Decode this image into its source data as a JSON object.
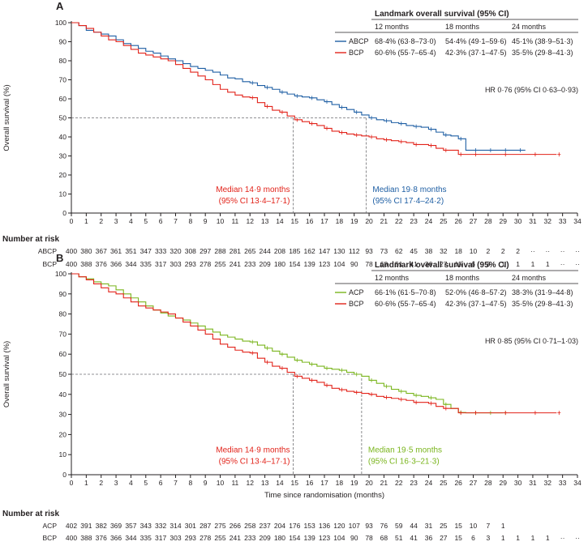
{
  "colors": {
    "abcp": "#1f5fa4",
    "bcp": "#e2231a",
    "acp": "#7ab51d",
    "text": "#231f20",
    "axis": "#231f20",
    "dash": "#6d6e71"
  },
  "chart_data": [
    {
      "panel_label": "A",
      "type": "line",
      "ylabel": "Overall survival (%)",
      "xlabel": "",
      "xlim": [
        0,
        34
      ],
      "ylim": [
        0,
        100
      ],
      "x_ticks": [
        "0",
        "1",
        "2",
        "3",
        "4",
        "5",
        "6",
        "7",
        "8",
        "9",
        "10",
        "11",
        "12",
        "13",
        "14",
        "15",
        "16",
        "17",
        "18",
        "19",
        "20",
        "21",
        "22",
        "23",
        "24",
        "25",
        "26",
        "27",
        "28",
        "29",
        "30",
        "31",
        "32",
        "33",
        "34"
      ],
      "y_ticks": [
        "0",
        "10",
        "20",
        "30",
        "40",
        "50",
        "60",
        "70",
        "80",
        "90",
        "100"
      ],
      "table": {
        "title": "Landmark overall survival (95% CI)",
        "headers": [
          "12 months",
          "18 months",
          "24 months"
        ],
        "rows": [
          {
            "name": "ABCP",
            "v12": "68·4% (63·8–73·0)",
            "v18": "54·4% (49·1–59·6)",
            "v24": "45·1% (38·9–51·3)"
          },
          {
            "name": "BCP",
            "v12": "60·6% (55·7–65·4)",
            "v18": "42·3% (37·1–47·5)",
            "v24": "35·5% (29·8–41·3)"
          }
        ]
      },
      "hr_text": "HR 0·76 (95% CI 0·63–0·93)",
      "median_left": {
        "line1": "Median 14·9 months",
        "line2": "(95% CI 13·4–17·1)",
        "x": 14.9
      },
      "median_right": {
        "line1": "Median 19·8 months",
        "line2": "(95% CI 17·4–24·2)",
        "x": 19.8
      },
      "series": [
        {
          "name": "ABCP",
          "x": [
            0,
            0.5,
            1,
            1.5,
            2,
            2.5,
            3,
            3.5,
            4,
            4.5,
            5,
            5.5,
            6,
            6.5,
            7,
            7.5,
            8,
            8.5,
            9,
            9.5,
            10,
            10.5,
            11,
            11.5,
            12,
            12.5,
            13,
            13.5,
            14,
            14.5,
            15,
            15.5,
            16,
            16.5,
            17,
            17.5,
            18,
            18.5,
            19,
            19.5,
            20,
            20.5,
            21,
            21.5,
            22,
            22.5,
            23,
            23.5,
            24,
            24.5,
            25,
            25.5,
            26,
            26.5,
            27,
            27.5,
            28,
            28.5,
            29,
            29.5,
            30,
            30.5
          ],
          "y": [
            100,
            98.5,
            96,
            95,
            94,
            93,
            91,
            89,
            88,
            86.5,
            85,
            84,
            82.5,
            81,
            80,
            78.5,
            77,
            76,
            75,
            74,
            72.5,
            71,
            70.5,
            69,
            68.4,
            67,
            66,
            65,
            63.5,
            62.5,
            61.5,
            61,
            60.5,
            59.5,
            58.5,
            57,
            55.5,
            54.4,
            53,
            51.5,
            50,
            49,
            48.5,
            47.5,
            47,
            46,
            45.5,
            45.1,
            44,
            42.5,
            41,
            40.5,
            39,
            33,
            33,
            33,
            33,
            33,
            33,
            33,
            33,
            33
          ]
        },
        {
          "name": "BCP",
          "x": [
            0,
            0.5,
            1,
            1.5,
            2,
            2.5,
            3,
            3.5,
            4,
            4.5,
            5,
            5.5,
            6,
            6.5,
            7,
            7.5,
            8,
            8.5,
            9,
            9.5,
            10,
            10.5,
            11,
            11.5,
            12,
            12.5,
            13,
            13.5,
            14,
            14.5,
            15,
            15.5,
            16,
            16.5,
            17,
            17.5,
            18,
            18.5,
            19,
            19.5,
            20,
            20.5,
            21,
            21.5,
            22,
            22.5,
            23,
            23.5,
            24,
            24.5,
            25,
            25.5,
            26,
            26.5,
            27,
            28,
            29,
            30,
            31,
            32,
            32.6
          ],
          "y": [
            100,
            98.5,
            97,
            95,
            93,
            91,
            90,
            88,
            86,
            84,
            83,
            82,
            81,
            80,
            78,
            76,
            74,
            72,
            70,
            67.5,
            65,
            63.5,
            62,
            61,
            60.6,
            58,
            56,
            54,
            53,
            51,
            49,
            48,
            47,
            46,
            44.5,
            43,
            42.3,
            41.5,
            41,
            40.5,
            40,
            39,
            38.5,
            38,
            37.5,
            37,
            36,
            36,
            35.5,
            34,
            33,
            33,
            30.8,
            30.8,
            30.8,
            30.8,
            30.8,
            30.8,
            30.8,
            30.8,
            30.8
          ]
        }
      ],
      "at_risk": {
        "title": "Number at risk",
        "rows": [
          {
            "name": "ABCP",
            "values": [
              "400",
              "380",
              "367",
              "361",
              "351",
              "347",
              "333",
              "320",
              "308",
              "297",
              "288",
              "281",
              "265",
              "244",
              "208",
              "185",
              "162",
              "147",
              "130",
              "112",
              "93",
              "73",
              "62",
              "45",
              "38",
              "32",
              "18",
              "10",
              "2",
              "2",
              "2",
              "··",
              "··",
              "··",
              "··"
            ]
          },
          {
            "name": "BCP",
            "values": [
              "400",
              "388",
              "376",
              "366",
              "344",
              "335",
              "317",
              "303",
              "293",
              "278",
              "255",
              "241",
              "233",
              "209",
              "180",
              "154",
              "139",
              "123",
              "104",
              "90",
              "78",
              "68",
              "51",
              "41",
              "36",
              "27",
              "15",
              "6",
              "3",
              "1",
              "1",
              "1",
              "1",
              "··",
              "··"
            ]
          }
        ]
      }
    },
    {
      "panel_label": "B",
      "type": "line",
      "ylabel": "Overall survival (%)",
      "xlabel": "Time since randomisation (months)",
      "xlim": [
        0,
        34
      ],
      "ylim": [
        0,
        100
      ],
      "x_ticks": [
        "0",
        "1",
        "2",
        "3",
        "4",
        "5",
        "6",
        "7",
        "8",
        "9",
        "10",
        "11",
        "12",
        "13",
        "14",
        "15",
        "16",
        "17",
        "18",
        "19",
        "20",
        "21",
        "22",
        "23",
        "24",
        "25",
        "26",
        "27",
        "28",
        "29",
        "30",
        "31",
        "32",
        "33",
        "34"
      ],
      "y_ticks": [
        "0",
        "10",
        "20",
        "30",
        "40",
        "50",
        "60",
        "70",
        "80",
        "90",
        "100"
      ],
      "table": {
        "title": "Landmark overall survival (95% CI)",
        "headers": [
          "12 months",
          "18 months",
          "24 months"
        ],
        "rows": [
          {
            "name": "ACP",
            "v12": "66·1% (61·5–70·8)",
            "v18": "52·0% (46·8–57·2)",
            "v24": "38·3% (31·9–44·8)"
          },
          {
            "name": "BCP",
            "v12": "60·6% (55·7–65·4)",
            "v18": "42·3% (37·1–47·5)",
            "v24": "35·5% (29·8–41·3)"
          }
        ]
      },
      "hr_text": "HR 0·85 (95% CI 0·71–1·03)",
      "median_left": {
        "line1": "Median 14·9 months",
        "line2": "(95% CI 13·4–17·1)",
        "x": 14.9
      },
      "median_right": {
        "line1": "Median 19·5 months",
        "line2": "(95% CI 16·3–21·3)",
        "x": 19.5
      },
      "series": [
        {
          "name": "ACP",
          "x": [
            0,
            0.5,
            1,
            1.5,
            2,
            2.5,
            3,
            3.5,
            4,
            4.5,
            5,
            5.5,
            6,
            6.5,
            7,
            7.5,
            8,
            8.5,
            9,
            9.5,
            10,
            10.5,
            11,
            11.5,
            12,
            12.5,
            13,
            13.5,
            14,
            14.5,
            15,
            15.5,
            16,
            16.5,
            17,
            17.5,
            18,
            18.5,
            19,
            19.5,
            20,
            20.5,
            21,
            21.5,
            22,
            22.5,
            23,
            23.5,
            24,
            24.5,
            25,
            25.5,
            26,
            26.5,
            27,
            27.5,
            28,
            28.5,
            29
          ],
          "y": [
            100,
            98.5,
            97.5,
            96,
            95,
            94,
            92,
            90,
            88,
            86,
            84,
            82,
            80.5,
            79,
            78,
            77,
            75.5,
            74,
            72.5,
            71,
            69.5,
            68.5,
            67.5,
            66.5,
            66.1,
            64.5,
            63,
            61.5,
            60,
            58.5,
            57,
            56,
            55,
            54,
            53,
            52.5,
            52,
            51,
            50,
            49,
            47,
            45.5,
            44,
            42.5,
            41.5,
            40.5,
            39.5,
            39,
            38.3,
            37.5,
            35,
            33,
            31,
            30.8,
            30.8,
            30.8,
            30.8,
            30.8,
            30.8
          ]
        },
        {
          "name": "BCP",
          "x": [
            0,
            0.5,
            1,
            1.5,
            2,
            2.5,
            3,
            3.5,
            4,
            4.5,
            5,
            5.5,
            6,
            6.5,
            7,
            7.5,
            8,
            8.5,
            9,
            9.5,
            10,
            10.5,
            11,
            11.5,
            12,
            12.5,
            13,
            13.5,
            14,
            14.5,
            15,
            15.5,
            16,
            16.5,
            17,
            17.5,
            18,
            18.5,
            19,
            19.5,
            20,
            20.5,
            21,
            21.5,
            22,
            22.5,
            23,
            23.5,
            24,
            24.5,
            25,
            25.5,
            26,
            26.5,
            27,
            28,
            29,
            30,
            31,
            32,
            32.6
          ],
          "y": [
            100,
            98.5,
            97,
            95,
            93,
            91,
            90,
            88,
            86,
            84,
            83,
            82,
            81,
            80,
            78,
            76,
            74,
            72,
            70,
            67.5,
            65,
            63.5,
            62,
            61,
            60.6,
            58,
            56,
            54,
            53,
            51,
            49,
            48,
            47,
            46,
            44.5,
            43,
            42.3,
            41.5,
            41,
            40.5,
            40,
            39,
            38.5,
            38,
            37.5,
            37,
            36,
            36,
            35.5,
            34,
            33,
            33,
            30.8,
            30.8,
            30.8,
            30.8,
            30.8,
            30.8,
            30.8,
            30.8,
            30.8
          ]
        }
      ],
      "at_risk": {
        "title": "Number at risk",
        "rows": [
          {
            "name": "ACP",
            "values": [
              "402",
              "391",
              "382",
              "369",
              "357",
              "343",
              "332",
              "314",
              "301",
              "287",
              "275",
              "266",
              "258",
              "237",
              "204",
              "176",
              "153",
              "136",
              "120",
              "107",
              "93",
              "76",
              "59",
              "44",
              "31",
              "25",
              "15",
              "10",
              "7",
              "1",
              "",
              "",
              "",
              "",
              ""
            ]
          },
          {
            "name": "BCP",
            "values": [
              "400",
              "388",
              "376",
              "366",
              "344",
              "335",
              "317",
              "303",
              "293",
              "278",
              "255",
              "241",
              "233",
              "209",
              "180",
              "154",
              "139",
              "123",
              "104",
              "90",
              "78",
              "68",
              "51",
              "41",
              "36",
              "27",
              "15",
              "6",
              "3",
              "1",
              "1",
              "1",
              "1",
              "··",
              "··"
            ]
          }
        ]
      }
    }
  ]
}
